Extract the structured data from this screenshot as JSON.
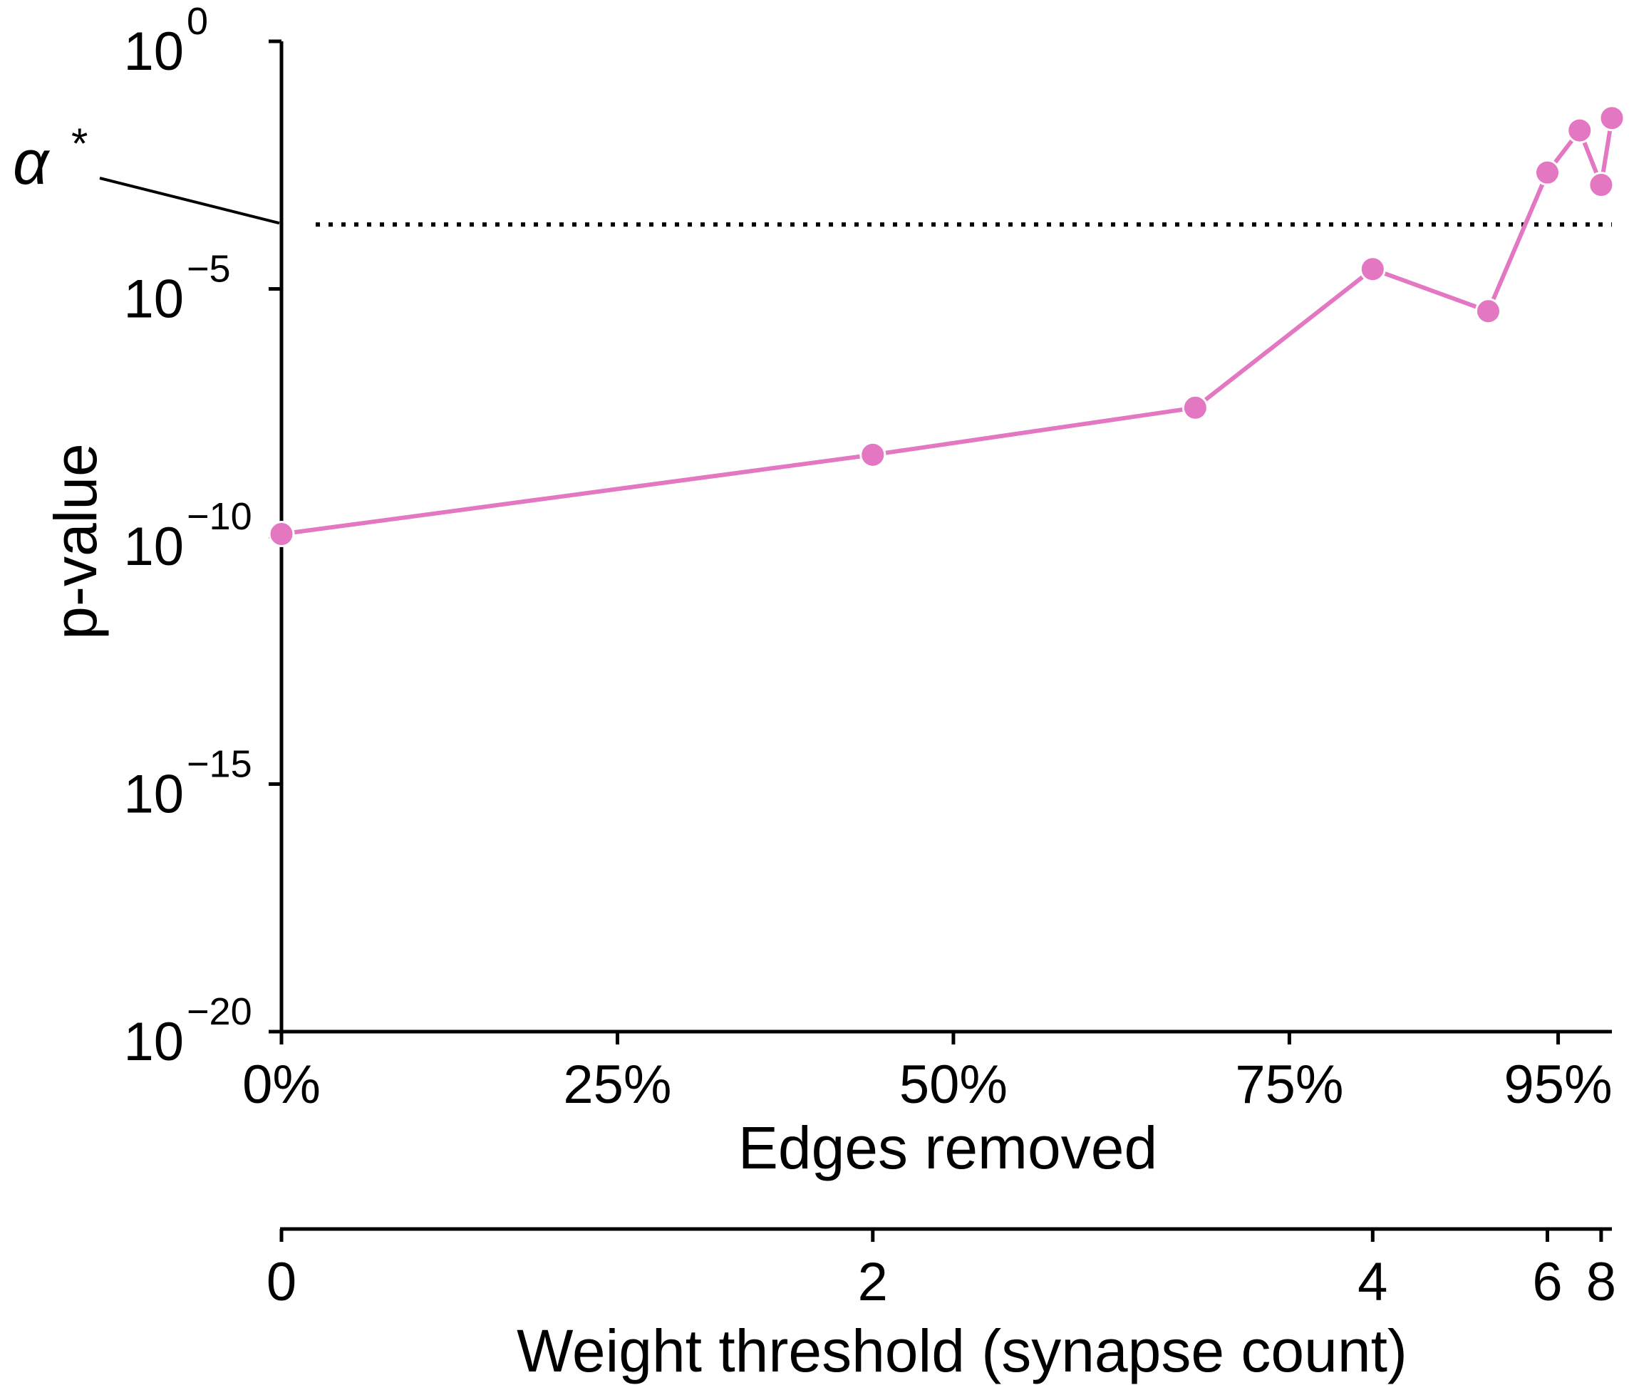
{
  "chart_data": {
    "type": "line",
    "xlabel": "Edges removed",
    "ylabel": "p-value",
    "y_scale": "log",
    "ylim_exponents": [
      -20,
      0
    ],
    "xlim": [
      0,
      99
    ],
    "x_ticks": [
      {
        "value": 0,
        "label": "0%"
      },
      {
        "value": 25,
        "label": "25%"
      },
      {
        "value": 50,
        "label": "50%"
      },
      {
        "value": 75,
        "label": "75%"
      },
      {
        "value": 95,
        "label": "95%"
      }
    ],
    "y_ticks": [
      {
        "exp": 0,
        "base": "10",
        "sup": "0"
      },
      {
        "exp": -5,
        "base": "10",
        "sup": "−5"
      },
      {
        "exp": -10,
        "base": "10",
        "sup": "−10"
      },
      {
        "exp": -15,
        "base": "10",
        "sup": "−15"
      },
      {
        "exp": -20,
        "base": "10",
        "sup": "−20"
      }
    ],
    "threshold": {
      "label_base": "α",
      "label_sup": "*",
      "log10_value": -3.7,
      "style": "dotted"
    },
    "series": [
      {
        "color": "#e377c2",
        "points": [
          {
            "x": 0,
            "y_log10": -9.95
          },
          {
            "x": 44,
            "y_log10": -8.35
          },
          {
            "x": 68,
            "y_log10": -7.4
          },
          {
            "x": 81.2,
            "y_log10": -4.6
          },
          {
            "x": 89.8,
            "y_log10": -5.45
          },
          {
            "x": 94.2,
            "y_log10": -2.65
          },
          {
            "x": 96.6,
            "y_log10": -1.8
          },
          {
            "x": 98.2,
            "y_log10": -2.9
          },
          {
            "x": 99,
            "y_log10": -1.55
          }
        ]
      }
    ],
    "secondary_x_axis": {
      "xlabel": "Weight threshold (synapse count)",
      "ticks": [
        {
          "label": "0",
          "at_percent": 0
        },
        {
          "label": "2",
          "at_percent": 44
        },
        {
          "label": "4",
          "at_percent": 81.2
        },
        {
          "label": "6",
          "at_percent": 94.2
        },
        {
          "label": "8",
          "at_percent": 98.2
        }
      ]
    }
  }
}
